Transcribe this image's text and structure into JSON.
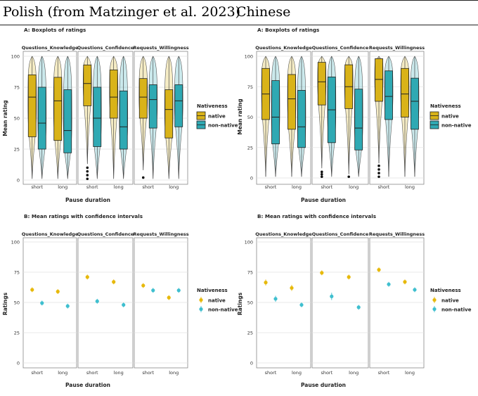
{
  "headings": {
    "left": "Polish (from Matzinger et al. 2023)",
    "right": "Chinese"
  },
  "colors": {
    "native": "#d9b319",
    "non_native": "#2fa9b3",
    "native_point": "#e7b90c",
    "non_native_point": "#3fbfcf",
    "grid": "#e3e3e3",
    "border": "#888888"
  },
  "chart_data": [
    {
      "language": "Polish",
      "type": "boxplot",
      "subtitle": "A: Boxplots of ratings",
      "xlabel": "Pause duration",
      "ylabel": "Mean rating",
      "ylim": [
        0,
        100
      ],
      "yticks": [
        "0",
        "25",
        "50",
        "75",
        "100"
      ],
      "categories": [
        "short",
        "long"
      ],
      "legend": {
        "title": "Nativeness",
        "native": "native",
        "non_native": "non-native"
      },
      "facets": [
        {
          "name": "Questions_Knowledge",
          "boxes": {
            "native": [
              [
                1,
                35,
                67,
                85,
                100
              ],
              [
                1,
                32,
                64,
                83,
                100
              ]
            ],
            "non_native": [
              [
                1,
                25,
                46,
                75,
                100
              ],
              [
                1,
                22,
                40,
                73,
                100
              ]
            ]
          },
          "outliers": {
            "native": [
              [],
              []
            ],
            "non_native": [
              [],
              []
            ]
          }
        },
        {
          "name": "Questions_Confidence",
          "boxes": {
            "native": [
              [
                13,
                60,
                78,
                93,
                100
              ],
              [
                1,
                50,
                67,
                89,
                100
              ]
            ],
            "non_native": [
              [
                1,
                27,
                50,
                75,
                100
              ],
              [
                1,
                25,
                43,
                72,
                100
              ]
            ]
          },
          "outliers": {
            "native": [
              [
                1,
                4,
                7,
                10
              ],
              []
            ],
            "non_native": [
              [],
              []
            ]
          }
        },
        {
          "name": "Requests_Willingness",
          "boxes": {
            "native": [
              [
                8,
                50,
                67,
                82,
                100
              ],
              [
                1,
                34,
                57,
                73,
                100
              ]
            ],
            "non_native": [
              [
                1,
                42,
                65,
                77,
                100
              ],
              [
                1,
                43,
                64,
                77,
                100
              ]
            ]
          },
          "outliers": {
            "native": [
              [
                2
              ],
              []
            ],
            "non_native": [
              [],
              []
            ]
          }
        }
      ]
    },
    {
      "language": "Polish",
      "type": "pointrange",
      "subtitle": "B: Mean ratings with confidence intervals",
      "xlabel": "Pause duration",
      "ylabel": "Ratings",
      "ylim": [
        0,
        100
      ],
      "yticks": [
        "0",
        "25",
        "50",
        "75",
        "100"
      ],
      "categories": [
        "short",
        "long"
      ],
      "legend": {
        "title": "Nativeness",
        "native": "native",
        "non_native": "non-native"
      },
      "facets": [
        {
          "name": "Questions_Knowledge",
          "means": {
            "native": [
              60.5,
              59
            ],
            "non_native": [
              49.5,
              47
            ]
          },
          "ci": {
            "native": [
              2,
              2
            ],
            "non_native": [
              2,
              2
            ]
          }
        },
        {
          "name": "Questions_Confidence",
          "means": {
            "native": [
              71,
              67
            ],
            "non_native": [
              51,
              48
            ]
          },
          "ci": {
            "native": [
              2,
              2
            ],
            "non_native": [
              2,
              2
            ]
          }
        },
        {
          "name": "Requests_Willingness",
          "means": {
            "native": [
              64,
              54
            ],
            "non_native": [
              60,
              60
            ]
          },
          "ci": {
            "native": [
              2,
              2
            ],
            "non_native": [
              2,
              2
            ]
          }
        }
      ]
    },
    {
      "language": "Chinese",
      "type": "boxplot",
      "subtitle": "A: Boxplots of ratings",
      "xlabel": "Pause duration",
      "ylabel": "Mean rating",
      "ylim": [
        0,
        100
      ],
      "yticks": [
        "0",
        "25",
        "50",
        "75",
        "100"
      ],
      "categories": [
        "short",
        "long"
      ],
      "legend": {
        "title": "Nativeness",
        "native": "native",
        "non_native": "non-native"
      },
      "facets": [
        {
          "name": "Questions_Knowledge",
          "boxes": {
            "native": [
              [
                1,
                48,
                69,
                90,
                100
              ],
              [
                1,
                40,
                65,
                85,
                100
              ]
            ],
            "non_native": [
              [
                1,
                28,
                50,
                80,
                100
              ],
              [
                1,
                25,
                42,
                72,
                100
              ]
            ]
          },
          "outliers": {
            "native": [
              [],
              []
            ],
            "non_native": [
              [],
              []
            ]
          }
        },
        {
          "name": "Questions_Confidence",
          "boxes": {
            "native": [
              [
                8,
                60,
                79,
                95,
                100
              ],
              [
                3,
                57,
                75,
                93,
                100
              ]
            ],
            "non_native": [
              [
                1,
                29,
                56,
                83,
                100
              ],
              [
                1,
                23,
                41,
                73,
                100
              ]
            ]
          },
          "outliers": {
            "native": [
              [
                1,
                3,
                5
              ],
              [
                1
              ]
            ],
            "non_native": [
              [],
              []
            ]
          }
        },
        {
          "name": "Requests_Willingness",
          "boxes": {
            "native": [
              [
                12,
                63,
                81,
                98,
                100
              ],
              [
                1,
                50,
                69,
                90,
                100
              ]
            ],
            "non_native": [
              [
                1,
                48,
                67,
                88,
                100
              ],
              [
                1,
                40,
                63,
                82,
                100
              ]
            ]
          },
          "outliers": {
            "native": [
              [
                1,
                4,
                7,
                10
              ],
              []
            ],
            "non_native": [
              [],
              []
            ]
          }
        }
      ]
    },
    {
      "language": "Chinese",
      "type": "pointrange",
      "subtitle": "B: Mean ratings with confidence intervals",
      "xlabel": "Pause duration",
      "ylabel": "Ratings",
      "ylim": [
        0,
        100
      ],
      "yticks": [
        "0",
        "25",
        "50",
        "75",
        "100"
      ],
      "categories": [
        "short",
        "long"
      ],
      "legend": {
        "title": "Nativeness",
        "native": "native",
        "non_native": "non-native"
      },
      "facets": [
        {
          "name": "Questions_Knowledge",
          "means": {
            "native": [
              66.5,
              62
            ],
            "non_native": [
              53,
              48
            ]
          },
          "ci": {
            "native": [
              2.5,
              2.5
            ],
            "non_native": [
              2.5,
              2
            ]
          }
        },
        {
          "name": "Questions_Confidence",
          "means": {
            "native": [
              74.5,
              71
            ],
            "non_native": [
              55,
              46
            ]
          },
          "ci": {
            "native": [
              2,
              2
            ],
            "non_native": [
              3,
              2
            ]
          }
        },
        {
          "name": "Requests_Willingness",
          "means": {
            "native": [
              77,
              67
            ],
            "non_native": [
              65,
              60.5
            ]
          },
          "ci": {
            "native": [
              2,
              2
            ],
            "non_native": [
              2,
              2
            ]
          }
        }
      ]
    }
  ]
}
